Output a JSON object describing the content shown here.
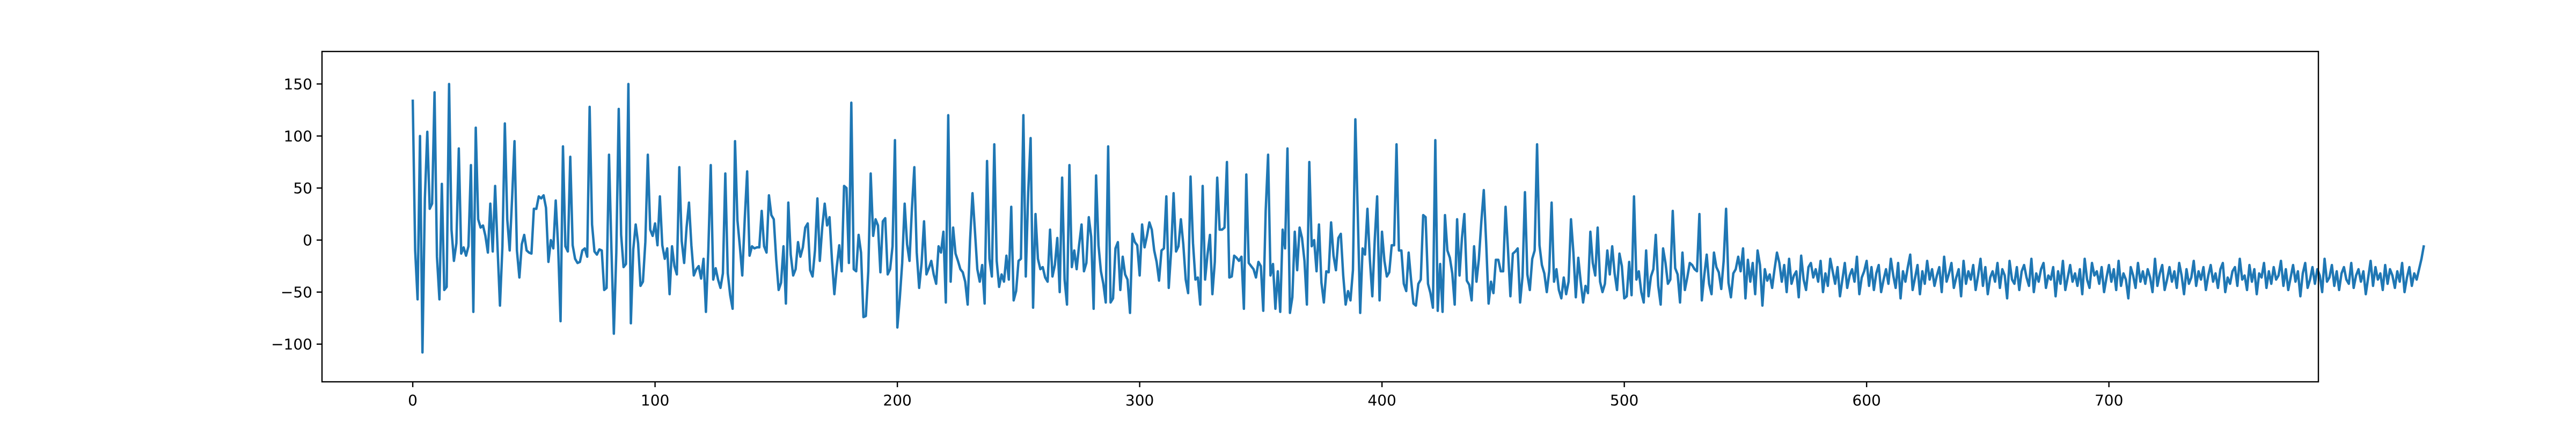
{
  "chart_data": {
    "type": "line",
    "title": "",
    "xlabel": "",
    "ylabel": "",
    "xlim": [
      -37.45,
      786.45
    ],
    "ylim": [
      -136.2,
      181.2
    ],
    "grid": false,
    "legend": "none",
    "x_ticks": [
      0,
      100,
      200,
      300,
      400,
      500,
      600,
      700
    ],
    "y_ticks": [
      -100,
      -50,
      0,
      50,
      100,
      150
    ],
    "series": [
      {
        "name": "",
        "color": "#1f77b4",
        "x_start": 0,
        "x_step": 1,
        "values": [
          135,
          -10,
          -57,
          100,
          -108,
          40,
          104,
          30,
          35,
          142,
          -16,
          -57,
          54,
          -48,
          -45,
          150,
          10,
          -20,
          -3,
          88,
          -13,
          -7,
          -15,
          -6,
          72,
          -69,
          108,
          20,
          12,
          14,
          4,
          -12,
          35,
          -11,
          52,
          -7,
          -63,
          -6,
          112,
          20,
          -10,
          40,
          95,
          -10,
          -36,
          -4,
          5,
          -10,
          -12,
          -13,
          30,
          30,
          42,
          40,
          43,
          31,
          -21,
          0,
          -8,
          38,
          -6,
          -78,
          90,
          -6,
          -11,
          80,
          -5,
          -18,
          -22,
          -21,
          -10,
          -8,
          -16,
          128,
          15,
          -11,
          -14,
          -9,
          -10,
          -48,
          -46,
          82,
          -8,
          -90,
          -12,
          126,
          5,
          -26,
          -23,
          150,
          -80,
          -9,
          15,
          -3,
          -44,
          -40,
          -2,
          82,
          10,
          4,
          16,
          -5,
          42,
          -5,
          -18,
          -8,
          -52,
          -6,
          -25,
          -33,
          70,
          -1,
          -22,
          12,
          36,
          -5,
          -34,
          -28,
          -25,
          -37,
          -18,
          -69,
          -9,
          72,
          -38,
          -27,
          -38,
          -46,
          -32,
          64,
          -32,
          -53,
          -66,
          95,
          19,
          -6,
          -34,
          20,
          66,
          -15,
          -6,
          -8,
          -7,
          -7,
          28,
          -6,
          -12,
          43,
          24,
          20,
          -19,
          -48,
          -41,
          -6,
          -61,
          36,
          -14,
          -34,
          -28,
          -2,
          -16,
          -7,
          12,
          16,
          -29,
          -35,
          -10,
          40,
          -20,
          12,
          35,
          14,
          22,
          -19,
          -52,
          -26,
          -5,
          -30,
          52,
          50,
          -22,
          132,
          -28,
          -30,
          5,
          -12,
          -74,
          -73,
          -30,
          64,
          4,
          20,
          14,
          -31,
          18,
          21,
          -33,
          -28,
          -6,
          96,
          -84,
          -56,
          -22,
          35,
          -4,
          -20,
          30,
          70,
          -12,
          -46,
          -22,
          18,
          -33,
          -27,
          -20,
          -33,
          -42,
          -6,
          -12,
          8,
          -60,
          120,
          -40,
          12,
          -13,
          -20,
          -28,
          -31,
          -40,
          -62,
          0,
          45,
          9,
          -28,
          -40,
          -24,
          -61,
          76,
          -18,
          -35,
          92,
          -20,
          -45,
          -33,
          -40,
          -15,
          -38,
          32,
          -58,
          -49,
          -20,
          -18,
          120,
          -35,
          46,
          98,
          -65,
          25,
          -18,
          -28,
          -26,
          -36,
          -40,
          10,
          -35,
          -24,
          2,
          -50,
          60,
          -38,
          -62,
          72,
          -26,
          -10,
          -28,
          -5,
          15,
          -30,
          -22,
          22,
          3,
          -66,
          62,
          -5,
          -30,
          -42,
          -60,
          90,
          -60,
          -56,
          -8,
          -2,
          -48,
          -16,
          -33,
          -38,
          -70,
          6,
          -2,
          -5,
          -34,
          15,
          -7,
          4,
          17,
          10,
          -10,
          -21,
          -39,
          -10,
          -8,
          42,
          -46,
          -10,
          45,
          -11,
          -6,
          20,
          -4,
          -38,
          -51,
          61,
          -3,
          -38,
          -36,
          -62,
          52,
          -38,
          -14,
          5,
          -52,
          -21,
          60,
          10,
          10,
          12,
          75,
          -36,
          -35,
          -15,
          -17,
          -20,
          -16,
          -66,
          63,
          -22,
          -25,
          -28,
          -36,
          -21,
          -25,
          -68,
          28,
          82,
          -34,
          -23,
          -66,
          -30,
          -69,
          10,
          -8,
          88,
          -70,
          -55,
          8,
          -29,
          12,
          2,
          -20,
          -62,
          75,
          -6,
          0,
          -30,
          15,
          -41,
          -60,
          -30,
          -31,
          17,
          -15,
          -29,
          2,
          6,
          -34,
          -62,
          -49,
          -58,
          -29,
          116,
          25,
          -70,
          -8,
          -14,
          30,
          -19,
          -54,
          0,
          42,
          -58,
          8,
          -20,
          -35,
          -31,
          -5,
          -5,
          92,
          -10,
          -10,
          -42,
          -49,
          -12,
          -38,
          -61,
          -63,
          -42,
          -38,
          24,
          22,
          -42,
          -51,
          -65,
          96,
          -68,
          -23,
          -69,
          24,
          -10,
          -17,
          -32,
          -62,
          20,
          -34,
          2,
          25,
          -39,
          -43,
          -58,
          -6,
          -40,
          -18,
          18,
          48,
          -3,
          -61,
          -40,
          -51,
          -19,
          -19,
          -30,
          -30,
          32,
          -9,
          -54,
          -13,
          -11,
          -8,
          -60,
          -35,
          46,
          -33,
          -48,
          -18,
          -10,
          92,
          -5,
          -24,
          -32,
          -50,
          -30,
          36,
          -40,
          -28,
          -48,
          -56,
          -36,
          -52,
          -40,
          20,
          -12,
          -55,
          -17,
          -40,
          -60,
          -44,
          -51,
          8,
          -22,
          -34,
          12,
          -40,
          -50,
          -42,
          -10,
          -33,
          -6,
          -32,
          -48,
          -13,
          -25,
          -56,
          -54,
          -21,
          -53,
          42,
          -38,
          -30,
          -50,
          -60,
          -10,
          -54,
          -35,
          -28,
          5,
          -44,
          -62,
          -8,
          -22,
          -42,
          -38,
          28,
          -27,
          -33,
          -60,
          -12,
          -48,
          -36,
          -22,
          -24,
          -28,
          -30,
          25,
          -58,
          -34,
          -14,
          -42,
          -52,
          -12,
          -26,
          -31,
          -47,
          -20,
          30,
          -41,
          -55,
          -32,
          -28,
          -16,
          -30,
          -8,
          -56,
          -19,
          -40,
          -22,
          -52,
          -10,
          -24,
          -63,
          -28,
          -39,
          -33,
          -46,
          -28,
          -12,
          -22,
          -40,
          -24,
          -50,
          -18,
          -42,
          -34,
          -30,
          -55,
          -15,
          -38,
          -48,
          -26,
          -22,
          -36,
          -28,
          -40,
          -20,
          -50,
          -32,
          -44,
          -18,
          -30,
          -42,
          -26,
          -54,
          -38,
          -22,
          -46,
          -34,
          -28,
          -40,
          -16,
          -52,
          -36,
          -30,
          -20,
          -44,
          -26,
          -48,
          -32,
          -24,
          -50,
          -38,
          -28,
          -42,
          -18,
          -34,
          -46,
          -22,
          -56,
          -30,
          -40,
          -26,
          -14,
          -48,
          -36,
          -24,
          -52,
          -30,
          -42,
          -20,
          -38,
          -28,
          -44,
          -34,
          -26,
          -50,
          -16,
          -40,
          -32,
          -22,
          -46,
          -36,
          -28,
          -54,
          -20,
          -42,
          -30,
          -38,
          -24,
          -48,
          -34,
          -18,
          -44,
          -26,
          -52,
          -36,
          -30,
          -40,
          -22,
          -46,
          -28,
          -34,
          -56,
          -20,
          -38,
          -42,
          -26,
          -48,
          -30,
          -24,
          -36,
          -44,
          -18,
          -50,
          -32,
          -40,
          -28,
          -22,
          -46,
          -34,
          -38,
          -26,
          -54,
          -30,
          -42,
          -20,
          -48,
          -36,
          -24,
          -40,
          -32,
          -44,
          -28,
          -52,
          -18,
          -38,
          -46,
          -22,
          -34,
          -30,
          -42,
          -26,
          -50,
          -36,
          -24,
          -40,
          -28,
          -48,
          -20,
          -44,
          -32,
          -38,
          -56,
          -26,
          -34,
          -46,
          -22,
          -40,
          -30,
          -42,
          -28,
          -36,
          -50,
          -18,
          -44,
          -32,
          -24,
          -48,
          -38,
          -26,
          -40,
          -30,
          -46,
          -22,
          -34,
          -52,
          -28,
          -42,
          -36,
          -20,
          -44,
          -30,
          -38,
          -26,
          -48,
          -34,
          -24,
          -40,
          -32,
          -46,
          -28,
          -22,
          -50,
          -36,
          -42,
          -30,
          -26,
          -44,
          -18,
          -38,
          -34,
          -48,
          -24,
          -40,
          -28,
          -52,
          -32,
          -36,
          -22,
          -46,
          -30,
          -42,
          -26,
          -38,
          -34,
          -20,
          -44,
          -28,
          -48,
          -36,
          -24,
          -40,
          -30,
          -54,
          -32,
          -22,
          -46,
          -38,
          -26,
          -42,
          -28,
          -34,
          -50,
          -18,
          -40,
          -36,
          -24,
          -44,
          -30,
          -48,
          -32,
          -26,
          -38,
          -42,
          -22,
          -46,
          -34,
          -28,
          -40,
          -30,
          -52,
          -36,
          -20,
          -44,
          -26,
          -38,
          -32,
          -48,
          -24,
          -42,
          -28,
          -34,
          -46,
          -30,
          -40,
          -22,
          -50,
          -36,
          -26,
          -44,
          -32,
          -38,
          -28,
          -18,
          -5
        ]
      }
    ]
  }
}
